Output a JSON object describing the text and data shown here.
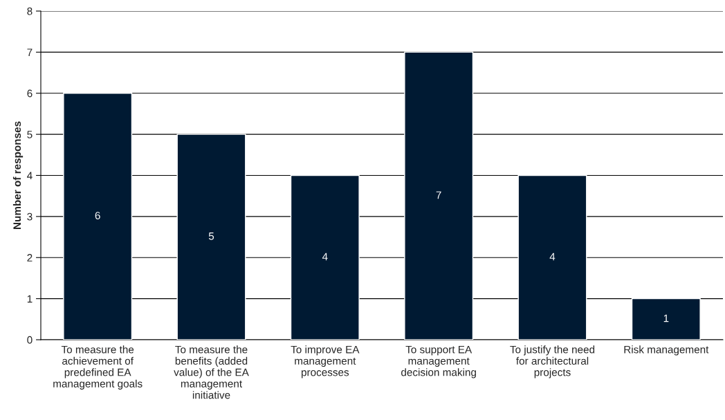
{
  "chart_data": {
    "type": "bar",
    "ylabel": "Number of responses",
    "categories": [
      "To measure the\nachievement of\npredefined EA\nmanagement goals",
      "To measure the\nbenefits (added\nvalue) of the EA\nmanagement\ninitiative",
      "To improve EA\nmanagement\nprocesses",
      "To support EA\nmanagement\ndecision making",
      "To justify the need\nfor architectural\nprojects",
      "Risk management"
    ],
    "values": [
      6,
      5,
      4,
      7,
      4,
      1
    ],
    "color": "#001a33",
    "ylim": [
      0,
      8
    ],
    "yticks": [
      0,
      1,
      2,
      3,
      4,
      5,
      6,
      7,
      8
    ],
    "grid": "y",
    "data_labels": true
  }
}
